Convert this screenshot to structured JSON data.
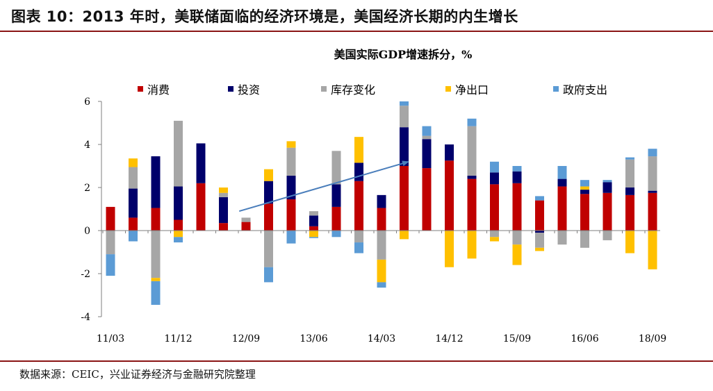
{
  "figure_title": "图表 10：2013 年时，美联储面临的经济环境是，美国经济长期的内生增长",
  "source_note": "数据来源：CEIC，兴业证券经济与金融研究院整理",
  "colors": {
    "consumption": "#c00000",
    "investment": "#00006b",
    "inventory": "#a6a6a6",
    "net_exports": "#ffc000",
    "government": "#5b9bd5",
    "arrow": "#4a7ebb",
    "frame_rule": "#8a1414"
  },
  "chart_data": {
    "type": "bar",
    "stacked": true,
    "title": "美国实际GDP增速拆分，%",
    "xlabel": "",
    "ylabel": "",
    "ylim": [
      -4,
      6
    ],
    "yticks": [
      -4,
      -2,
      0,
      2,
      4,
      6
    ],
    "grid": false,
    "legend": "top",
    "x_tick_labels": [
      "11/03",
      "11/12",
      "12/09",
      "13/06",
      "14/03",
      "14/12",
      "15/09",
      "16/06",
      "18/09"
    ],
    "x_tick_positions": [
      0,
      3,
      6,
      9,
      12,
      15,
      18,
      21,
      24
    ],
    "series": [
      {
        "name": "消费",
        "key": "consumption",
        "values": [
          1.1,
          0.6,
          1.05,
          0.5,
          2.2,
          0.35,
          0.4,
          1.25,
          1.45,
          0.2,
          1.1,
          2.3,
          1.05,
          3.0,
          2.9,
          3.25,
          2.4,
          2.15,
          2.2,
          1.4,
          2.05,
          1.7,
          1.75,
          1.65,
          1.75
        ]
      },
      {
        "name": "投资",
        "key": "investment",
        "values": [
          0,
          1.35,
          2.4,
          1.55,
          1.85,
          1.2,
          0,
          1.05,
          1.1,
          0.5,
          1.05,
          0.85,
          0.6,
          1.8,
          1.35,
          0.75,
          0.15,
          0.55,
          0.55,
          -0.1,
          0.35,
          0.2,
          0.5,
          0.35,
          0.1
        ]
      },
      {
        "name": "库存变化",
        "key": "inventory",
        "values": [
          -1.1,
          1.0,
          -2.2,
          3.05,
          0,
          0.2,
          0.2,
          -1.7,
          1.3,
          0.2,
          1.55,
          -0.55,
          -1.35,
          1.0,
          0.15,
          0,
          2.3,
          -0.3,
          -0.65,
          -0.7,
          -0.65,
          -0.8,
          -0.45,
          1.3,
          1.6
        ]
      },
      {
        "name": "净出口",
        "key": "net_exports",
        "values": [
          0,
          0.4,
          -0.15,
          -0.3,
          0,
          0.25,
          0,
          0.55,
          0.3,
          -0.3,
          0,
          1.2,
          -1.05,
          -0.4,
          0,
          -1.7,
          -1.3,
          -0.2,
          -0.95,
          -0.15,
          0,
          0.15,
          0,
          -1.05,
          -1.8
        ]
      },
      {
        "name": "政府支出",
        "key": "government",
        "values": [
          -1.0,
          -0.5,
          -1.1,
          -0.25,
          0,
          0,
          0,
          -0.7,
          -0.6,
          -0.05,
          -0.3,
          -0.5,
          -0.25,
          0.2,
          0.45,
          0,
          0.35,
          0.5,
          0.25,
          0.2,
          0.6,
          0.3,
          0.1,
          0.1,
          0.35
        ]
      }
    ],
    "annotation_arrow": {
      "from": [
        5.7,
        0.9
      ],
      "to": [
        13.2,
        3.2
      ]
    }
  }
}
